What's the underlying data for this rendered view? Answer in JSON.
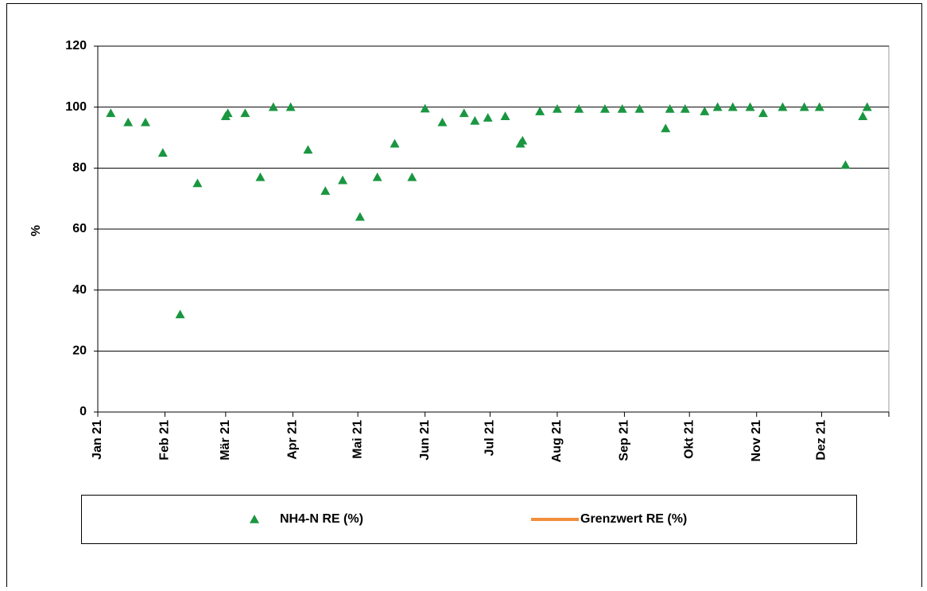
{
  "chart_data": {
    "type": "scatter",
    "ylabel": "%",
    "ylim": [
      0,
      120
    ],
    "yticks": [
      0,
      20,
      40,
      60,
      80,
      100,
      120
    ],
    "xlim": [
      0,
      365
    ],
    "xticks": [
      {
        "value": 0,
        "label": "Jan 21"
      },
      {
        "value": 31,
        "label": "Feb 21"
      },
      {
        "value": 59,
        "label": "Mär 21"
      },
      {
        "value": 90,
        "label": "Apr 21"
      },
      {
        "value": 120,
        "label": "Mai 21"
      },
      {
        "value": 151,
        "label": "Jun 21"
      },
      {
        "value": 181,
        "label": "Jul 21"
      },
      {
        "value": 212,
        "label": "Aug 21"
      },
      {
        "value": 243,
        "label": "Sep 21"
      },
      {
        "value": 273,
        "label": "Okt 21"
      },
      {
        "value": 304,
        "label": "Nov 21"
      },
      {
        "value": 334,
        "label": "Dez 21"
      }
    ],
    "grid": true,
    "x": [
      6,
      14,
      22,
      30,
      38,
      46,
      59,
      60,
      68,
      75,
      81,
      89,
      97,
      105,
      113,
      121,
      129,
      137,
      145,
      151,
      159,
      169,
      174,
      180,
      188,
      195,
      196,
      204,
      212,
      222,
      234,
      242,
      250,
      262,
      264,
      271,
      280,
      286,
      293,
      301,
      307,
      316,
      326,
      333,
      345,
      353,
      355
    ],
    "series": [
      {
        "name": "NH4-N RE (%)",
        "color": "#1a9641",
        "marker": "triangle",
        "values": [
          98,
          95,
          95,
          85,
          32,
          75,
          97,
          98,
          98,
          77,
          100,
          100,
          86,
          72.5,
          76,
          64,
          77,
          88,
          77,
          99.5,
          95,
          98,
          95.5,
          96.5,
          97,
          88,
          89,
          98.6,
          99.4,
          99.4,
          99.4,
          99.4,
          99.4,
          93,
          99.4,
          99.4,
          98.6,
          100,
          100,
          100,
          98,
          100,
          100,
          100,
          81,
          97,
          100
        ]
      },
      {
        "name": "Grenzwert RE (%)",
        "color": "#f28e3b",
        "marker": "line",
        "values": [
          null,
          null,
          null,
          null,
          null,
          null,
          null,
          null,
          null,
          null,
          null,
          null,
          null,
          null,
          null,
          null,
          null,
          null,
          null,
          null,
          null,
          null,
          null,
          null,
          null,
          null,
          null,
          null,
          null,
          null,
          null,
          null,
          null,
          null,
          null,
          null,
          null,
          null,
          null,
          null,
          null,
          null,
          null,
          null,
          null,
          null,
          null
        ]
      }
    ]
  }
}
